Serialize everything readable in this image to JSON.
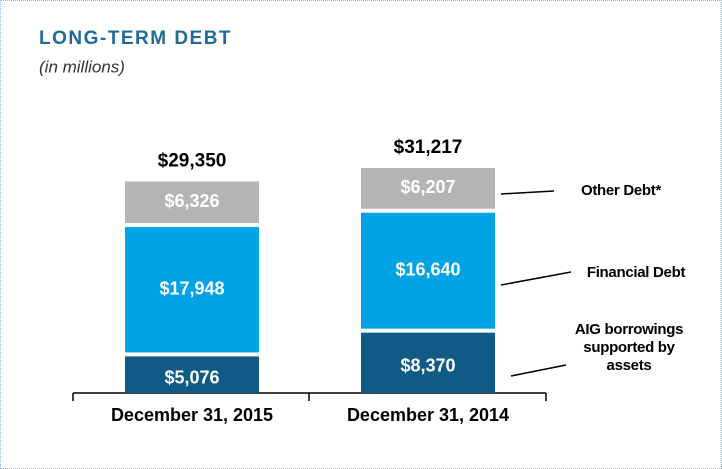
{
  "chart_data": {
    "type": "stacked_bar",
    "title": "LONG-TERM DEBT",
    "subtitle": "(in millions)",
    "categories": [
      "December 31, 2015",
      "December 31, 2014"
    ],
    "series": [
      {
        "name": "AIG borrowings supported by assets",
        "color": "#105a86",
        "values": [
          5076,
          8370
        ],
        "value_labels": [
          "$5,076",
          "$8,370"
        ]
      },
      {
        "name": "Financial Debt",
        "color": "#00a4e4",
        "values": [
          17948,
          16640
        ],
        "value_labels": [
          "$17,948",
          "$16,640"
        ]
      },
      {
        "name": "Other Debt*",
        "color": "#b4b4b4",
        "values": [
          6326,
          6207
        ],
        "value_labels": [
          "$6,326",
          "$6,207"
        ]
      }
    ],
    "totals": [
      29350,
      31217
    ],
    "total_labels": [
      "$29,350",
      "$31,217"
    ]
  }
}
